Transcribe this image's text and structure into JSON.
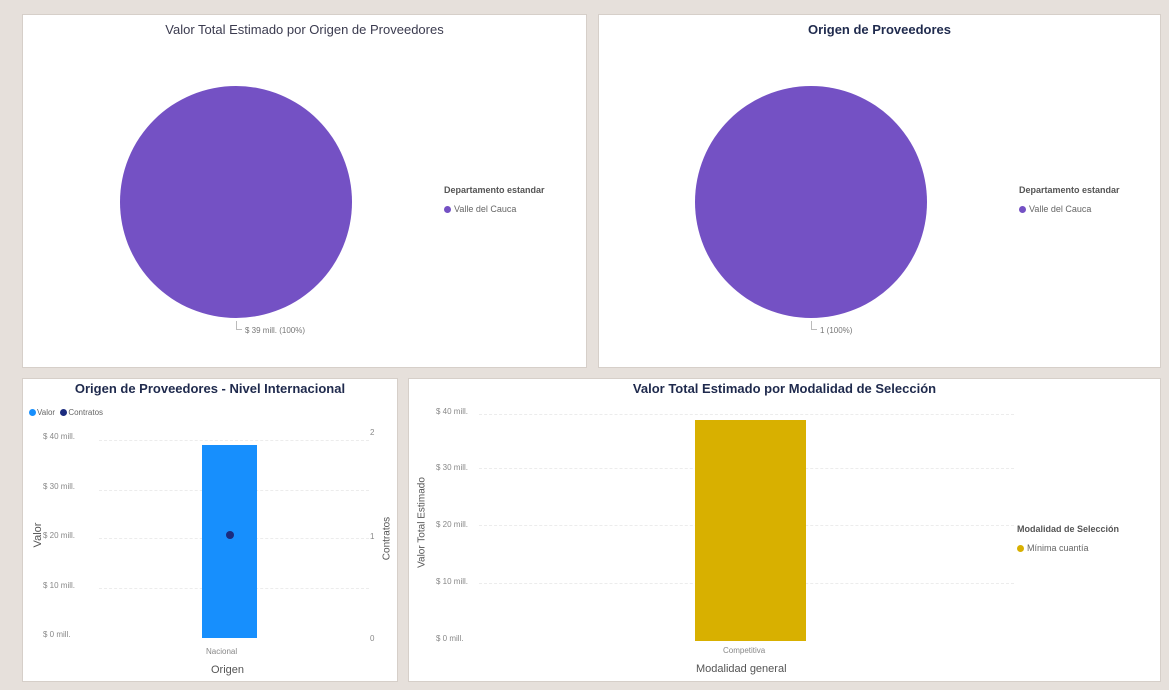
{
  "colors": {
    "purple": "#7451c4",
    "blue": "#178ffd",
    "navy": "#1b2b7e",
    "gold": "#d8b000"
  },
  "chart_data": [
    {
      "type": "pie",
      "title": "Valor Total Estimado por Origen de Proveedores",
      "legend_title": "Departamento estandar",
      "legend_position": "right",
      "slices": [
        {
          "label": "Valle del Cauca",
          "value": 39,
          "data_label": "$ 39 mill. (100%)"
        }
      ]
    },
    {
      "type": "pie",
      "title": "Origen de Proveedores",
      "legend_title": "Departamento estandar",
      "legend_position": "right",
      "slices": [
        {
          "label": "Valle del Cauca",
          "value": 1,
          "data_label": "1 (100%)"
        }
      ]
    },
    {
      "type": "bar",
      "title": "Origen de Proveedores - Nivel Internacional",
      "legend_position": "top-left",
      "legend": [
        "Valor",
        "Contratos"
      ],
      "categories": [
        "Nacional"
      ],
      "series": [
        {
          "name": "Valor",
          "values": [
            39
          ]
        },
        {
          "name": "Contratos",
          "values": [
            1
          ]
        }
      ],
      "xlabel": "Origen",
      "ylabel": "Valor",
      "y2label": "Contratos",
      "ylim": [
        0,
        40
      ],
      "y2lim": [
        0,
        2
      ],
      "yticks": [
        "$ 0 mill.",
        "$ 10 mill.",
        "$ 20 mill.",
        "$ 30 mill.",
        "$ 40 mill."
      ],
      "y2ticks": [
        "0",
        "1",
        "2"
      ]
    },
    {
      "type": "bar",
      "title": "Valor Total Estimado por Modalidad de Selección",
      "legend_title": "Modalidad de Selección",
      "legend_position": "right",
      "legend": [
        "Mínima cuantía"
      ],
      "categories": [
        "Competitiva"
      ],
      "values": [
        39
      ],
      "xlabel": "Modalidad general",
      "ylabel": "Valor Total Estimado",
      "ylim": [
        0,
        40
      ],
      "yticks": [
        "$ 0 mill.",
        "$ 10 mill.",
        "$ 20 mill.",
        "$ 30 mill.",
        "$ 40 mill."
      ]
    }
  ]
}
